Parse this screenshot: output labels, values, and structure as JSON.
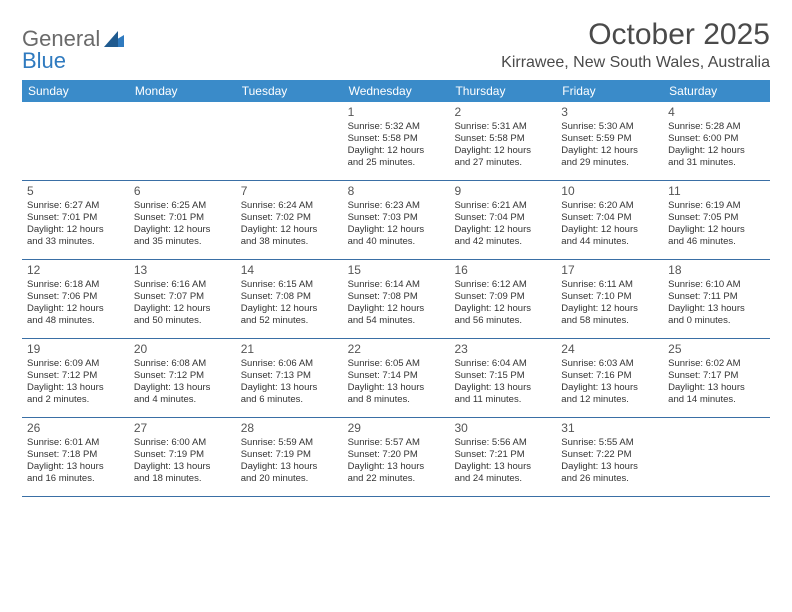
{
  "brand": {
    "word1": "General",
    "word2": "Blue"
  },
  "title": "October 2025",
  "location": "Kirrawee, New South Wales, Australia",
  "colors": {
    "header_bg": "#3a8bc9",
    "header_text": "#ffffff",
    "row_border": "#3a6fa5",
    "body_text": "#333333",
    "title_text": "#4a4a4a",
    "logo_gray": "#6a6a6a",
    "logo_blue": "#2f7abf"
  },
  "days_of_week": [
    "Sunday",
    "Monday",
    "Tuesday",
    "Wednesday",
    "Thursday",
    "Friday",
    "Saturday"
  ],
  "weeks": [
    [
      {
        "num": "",
        "sunrise": "",
        "sunset": "",
        "daylight1": "",
        "daylight2": ""
      },
      {
        "num": "",
        "sunrise": "",
        "sunset": "",
        "daylight1": "",
        "daylight2": ""
      },
      {
        "num": "",
        "sunrise": "",
        "sunset": "",
        "daylight1": "",
        "daylight2": ""
      },
      {
        "num": "1",
        "sunrise": "Sunrise: 5:32 AM",
        "sunset": "Sunset: 5:58 PM",
        "daylight1": "Daylight: 12 hours",
        "daylight2": "and 25 minutes."
      },
      {
        "num": "2",
        "sunrise": "Sunrise: 5:31 AM",
        "sunset": "Sunset: 5:58 PM",
        "daylight1": "Daylight: 12 hours",
        "daylight2": "and 27 minutes."
      },
      {
        "num": "3",
        "sunrise": "Sunrise: 5:30 AM",
        "sunset": "Sunset: 5:59 PM",
        "daylight1": "Daylight: 12 hours",
        "daylight2": "and 29 minutes."
      },
      {
        "num": "4",
        "sunrise": "Sunrise: 5:28 AM",
        "sunset": "Sunset: 6:00 PM",
        "daylight1": "Daylight: 12 hours",
        "daylight2": "and 31 minutes."
      }
    ],
    [
      {
        "num": "5",
        "sunrise": "Sunrise: 6:27 AM",
        "sunset": "Sunset: 7:01 PM",
        "daylight1": "Daylight: 12 hours",
        "daylight2": "and 33 minutes."
      },
      {
        "num": "6",
        "sunrise": "Sunrise: 6:25 AM",
        "sunset": "Sunset: 7:01 PM",
        "daylight1": "Daylight: 12 hours",
        "daylight2": "and 35 minutes."
      },
      {
        "num": "7",
        "sunrise": "Sunrise: 6:24 AM",
        "sunset": "Sunset: 7:02 PM",
        "daylight1": "Daylight: 12 hours",
        "daylight2": "and 38 minutes."
      },
      {
        "num": "8",
        "sunrise": "Sunrise: 6:23 AM",
        "sunset": "Sunset: 7:03 PM",
        "daylight1": "Daylight: 12 hours",
        "daylight2": "and 40 minutes."
      },
      {
        "num": "9",
        "sunrise": "Sunrise: 6:21 AM",
        "sunset": "Sunset: 7:04 PM",
        "daylight1": "Daylight: 12 hours",
        "daylight2": "and 42 minutes."
      },
      {
        "num": "10",
        "sunrise": "Sunrise: 6:20 AM",
        "sunset": "Sunset: 7:04 PM",
        "daylight1": "Daylight: 12 hours",
        "daylight2": "and 44 minutes."
      },
      {
        "num": "11",
        "sunrise": "Sunrise: 6:19 AM",
        "sunset": "Sunset: 7:05 PM",
        "daylight1": "Daylight: 12 hours",
        "daylight2": "and 46 minutes."
      }
    ],
    [
      {
        "num": "12",
        "sunrise": "Sunrise: 6:18 AM",
        "sunset": "Sunset: 7:06 PM",
        "daylight1": "Daylight: 12 hours",
        "daylight2": "and 48 minutes."
      },
      {
        "num": "13",
        "sunrise": "Sunrise: 6:16 AM",
        "sunset": "Sunset: 7:07 PM",
        "daylight1": "Daylight: 12 hours",
        "daylight2": "and 50 minutes."
      },
      {
        "num": "14",
        "sunrise": "Sunrise: 6:15 AM",
        "sunset": "Sunset: 7:08 PM",
        "daylight1": "Daylight: 12 hours",
        "daylight2": "and 52 minutes."
      },
      {
        "num": "15",
        "sunrise": "Sunrise: 6:14 AM",
        "sunset": "Sunset: 7:08 PM",
        "daylight1": "Daylight: 12 hours",
        "daylight2": "and 54 minutes."
      },
      {
        "num": "16",
        "sunrise": "Sunrise: 6:12 AM",
        "sunset": "Sunset: 7:09 PM",
        "daylight1": "Daylight: 12 hours",
        "daylight2": "and 56 minutes."
      },
      {
        "num": "17",
        "sunrise": "Sunrise: 6:11 AM",
        "sunset": "Sunset: 7:10 PM",
        "daylight1": "Daylight: 12 hours",
        "daylight2": "and 58 minutes."
      },
      {
        "num": "18",
        "sunrise": "Sunrise: 6:10 AM",
        "sunset": "Sunset: 7:11 PM",
        "daylight1": "Daylight: 13 hours",
        "daylight2": "and 0 minutes."
      }
    ],
    [
      {
        "num": "19",
        "sunrise": "Sunrise: 6:09 AM",
        "sunset": "Sunset: 7:12 PM",
        "daylight1": "Daylight: 13 hours",
        "daylight2": "and 2 minutes."
      },
      {
        "num": "20",
        "sunrise": "Sunrise: 6:08 AM",
        "sunset": "Sunset: 7:12 PM",
        "daylight1": "Daylight: 13 hours",
        "daylight2": "and 4 minutes."
      },
      {
        "num": "21",
        "sunrise": "Sunrise: 6:06 AM",
        "sunset": "Sunset: 7:13 PM",
        "daylight1": "Daylight: 13 hours",
        "daylight2": "and 6 minutes."
      },
      {
        "num": "22",
        "sunrise": "Sunrise: 6:05 AM",
        "sunset": "Sunset: 7:14 PM",
        "daylight1": "Daylight: 13 hours",
        "daylight2": "and 8 minutes."
      },
      {
        "num": "23",
        "sunrise": "Sunrise: 6:04 AM",
        "sunset": "Sunset: 7:15 PM",
        "daylight1": "Daylight: 13 hours",
        "daylight2": "and 11 minutes."
      },
      {
        "num": "24",
        "sunrise": "Sunrise: 6:03 AM",
        "sunset": "Sunset: 7:16 PM",
        "daylight1": "Daylight: 13 hours",
        "daylight2": "and 12 minutes."
      },
      {
        "num": "25",
        "sunrise": "Sunrise: 6:02 AM",
        "sunset": "Sunset: 7:17 PM",
        "daylight1": "Daylight: 13 hours",
        "daylight2": "and 14 minutes."
      }
    ],
    [
      {
        "num": "26",
        "sunrise": "Sunrise: 6:01 AM",
        "sunset": "Sunset: 7:18 PM",
        "daylight1": "Daylight: 13 hours",
        "daylight2": "and 16 minutes."
      },
      {
        "num": "27",
        "sunrise": "Sunrise: 6:00 AM",
        "sunset": "Sunset: 7:19 PM",
        "daylight1": "Daylight: 13 hours",
        "daylight2": "and 18 minutes."
      },
      {
        "num": "28",
        "sunrise": "Sunrise: 5:59 AM",
        "sunset": "Sunset: 7:19 PM",
        "daylight1": "Daylight: 13 hours",
        "daylight2": "and 20 minutes."
      },
      {
        "num": "29",
        "sunrise": "Sunrise: 5:57 AM",
        "sunset": "Sunset: 7:20 PM",
        "daylight1": "Daylight: 13 hours",
        "daylight2": "and 22 minutes."
      },
      {
        "num": "30",
        "sunrise": "Sunrise: 5:56 AM",
        "sunset": "Sunset: 7:21 PM",
        "daylight1": "Daylight: 13 hours",
        "daylight2": "and 24 minutes."
      },
      {
        "num": "31",
        "sunrise": "Sunrise: 5:55 AM",
        "sunset": "Sunset: 7:22 PM",
        "daylight1": "Daylight: 13 hours",
        "daylight2": "and 26 minutes."
      },
      {
        "num": "",
        "sunrise": "",
        "sunset": "",
        "daylight1": "",
        "daylight2": ""
      }
    ]
  ]
}
